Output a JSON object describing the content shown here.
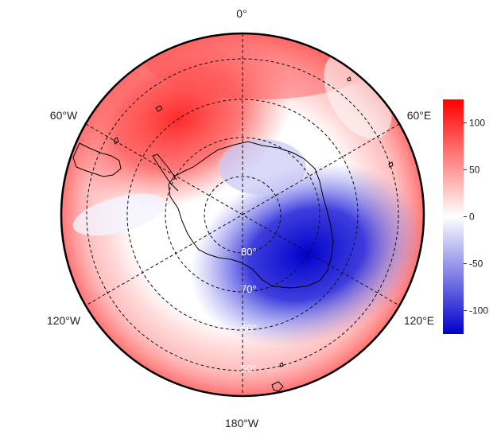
{
  "map": {
    "projection": "south polar stereographic",
    "longitude_labels": {
      "top": "0°",
      "upper_left": "60°W",
      "upper_right": "60°E",
      "lower_left": "120°W",
      "lower_right": "120°E",
      "bottom": "180°W"
    },
    "latitude_labels": [
      "80°",
      "70°",
      "60°",
      "50°"
    ],
    "colorbar": {
      "ticks": [
        "100",
        "50",
        "0",
        "-50",
        "-100"
      ],
      "range": [
        -125,
        125
      ],
      "colors": {
        "high": "#ff0000",
        "mid": "#ffffff",
        "low": "#0000cc"
      }
    },
    "grid": "dashed",
    "field_pattern": "wavenumber-1: positive toward 30°W, negative toward 150°E"
  }
}
